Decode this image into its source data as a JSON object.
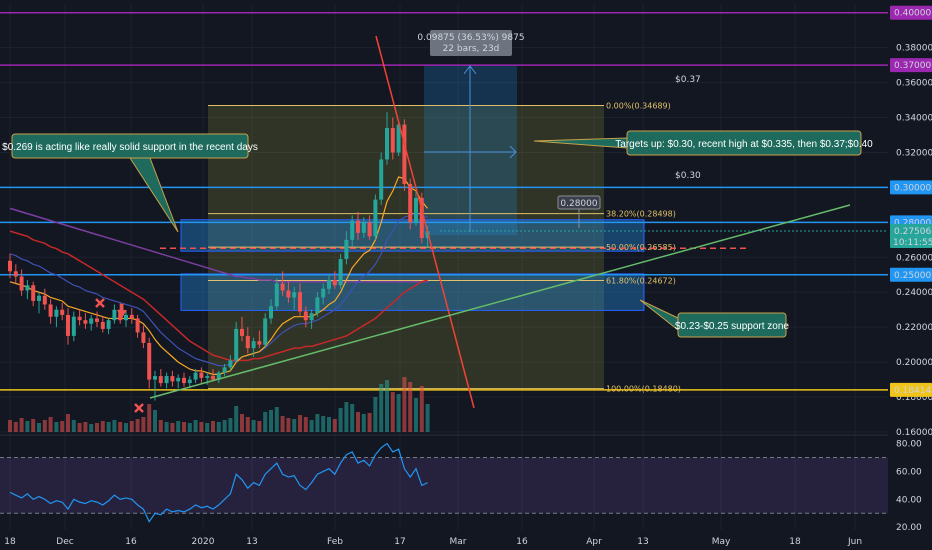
{
  "colors": {
    "background": "#131722",
    "grid": "#1e2230",
    "up": "#26a69a",
    "down": "#ef5350",
    "blue_line": "#2196f3",
    "purple_line": "#9c27b0",
    "yellow_line": "#f0c419",
    "fib_line": "#e0c068",
    "annotation_bg": "#1e6b5e",
    "annotation_border": "#c8a24a",
    "trend_red": "#f44336",
    "trend_green": "#66bb6a"
  },
  "chart_data": {
    "type": "candlestick",
    "ylim": [
      0.16,
      0.405
    ],
    "rsi_ylim": [
      18,
      84
    ],
    "y_ticks": [
      "0.38000",
      "0.36000",
      "0.34000",
      "0.32000",
      "0.30000",
      "0.28000",
      "0.26000",
      "0.24000",
      "0.22000",
      "0.20000",
      "0.18000",
      "0.16000"
    ],
    "x_ticks": [
      "18",
      "Dec",
      "16",
      "2020",
      "13",
      "Feb",
      "17",
      "Mar",
      "16",
      "Apr",
      "13",
      "May",
      "18",
      "Jun"
    ],
    "rsi_ticks": [
      "80.00",
      "60.00",
      "40.00",
      "20.00"
    ],
    "rsi_levels": [
      70,
      30
    ],
    "horizontal_levels": [
      {
        "value": 0.4,
        "label": "0.40000",
        "color": "purple"
      },
      {
        "value": 0.37,
        "label": "0.37000",
        "color": "purple"
      },
      {
        "value": 0.3,
        "label": "0.30000",
        "color": "blue"
      },
      {
        "value": 0.28,
        "label": "0.28000",
        "color": "blue"
      },
      {
        "value": 0.25,
        "label": "0.25000",
        "color": "blue"
      },
      {
        "value": 0.18414,
        "label": "0.18414",
        "color": "yellow"
      }
    ],
    "current_price": {
      "value": 0.27506,
      "label": "0.27506",
      "countdown": "10:11:55"
    },
    "fib_levels": [
      {
        "value": 0.34689,
        "label": "0.00%(0.34689)"
      },
      {
        "value": 0.28498,
        "label": "38.20%(0.28498)"
      },
      {
        "value": 0.26585,
        "label": "50.00%(0.26585)"
      },
      {
        "value": 0.24672,
        "label": "61.80%(0.24672)"
      },
      {
        "value": 0.1848,
        "label": "100.00%(0.18480)"
      }
    ],
    "annotations": [
      "$0.269 is acting like really solid support in the recent days",
      "Targets up: $0.30, recent high at $0.335, then $0.37;$0.40",
      "$0.23-$0.25 support zone"
    ],
    "price_labels": [
      "$0.37",
      "$0.30"
    ],
    "small_label": "0.28000",
    "measure_box": {
      "line1": "0.09875 (36.53%) 9875",
      "line2": "22 bars, 23d"
    },
    "candles": [
      [
        0.258,
        0.262,
        0.248,
        0.252
      ],
      [
        0.252,
        0.256,
        0.245,
        0.249
      ],
      [
        0.249,
        0.253,
        0.238,
        0.241
      ],
      [
        0.241,
        0.247,
        0.236,
        0.244
      ],
      [
        0.244,
        0.246,
        0.232,
        0.235
      ],
      [
        0.235,
        0.24,
        0.228,
        0.238
      ],
      [
        0.238,
        0.242,
        0.23,
        0.233
      ],
      [
        0.233,
        0.236,
        0.222,
        0.226
      ],
      [
        0.226,
        0.232,
        0.22,
        0.23
      ],
      [
        0.23,
        0.234,
        0.224,
        0.227
      ],
      [
        0.227,
        0.231,
        0.21,
        0.215
      ],
      [
        0.215,
        0.229,
        0.212,
        0.226
      ],
      [
        0.226,
        0.23,
        0.221,
        0.224
      ],
      [
        0.224,
        0.228,
        0.219,
        0.222
      ],
      [
        0.222,
        0.227,
        0.218,
        0.225
      ],
      [
        0.225,
        0.229,
        0.22,
        0.223
      ],
      [
        0.223,
        0.226,
        0.217,
        0.219
      ],
      [
        0.219,
        0.225,
        0.216,
        0.224
      ],
      [
        0.224,
        0.233,
        0.222,
        0.23
      ],
      [
        0.23,
        0.234,
        0.222,
        0.224
      ],
      [
        0.224,
        0.229,
        0.22,
        0.227
      ],
      [
        0.227,
        0.231,
        0.222,
        0.225
      ],
      [
        0.225,
        0.227,
        0.214,
        0.217
      ],
      [
        0.217,
        0.221,
        0.208,
        0.211
      ],
      [
        0.211,
        0.214,
        0.185,
        0.19
      ],
      [
        0.19,
        0.195,
        0.178,
        0.192
      ],
      [
        0.192,
        0.196,
        0.186,
        0.188
      ],
      [
        0.188,
        0.194,
        0.185,
        0.192
      ],
      [
        0.192,
        0.195,
        0.186,
        0.189
      ],
      [
        0.189,
        0.193,
        0.185,
        0.191
      ],
      [
        0.191,
        0.194,
        0.186,
        0.188
      ],
      [
        0.188,
        0.192,
        0.185,
        0.19
      ],
      [
        0.19,
        0.196,
        0.188,
        0.194
      ],
      [
        0.194,
        0.197,
        0.188,
        0.191
      ],
      [
        0.191,
        0.194,
        0.187,
        0.192
      ],
      [
        0.192,
        0.196,
        0.189,
        0.19
      ],
      [
        0.19,
        0.195,
        0.188,
        0.194
      ],
      [
        0.194,
        0.199,
        0.192,
        0.197
      ],
      [
        0.197,
        0.204,
        0.195,
        0.201
      ],
      [
        0.201,
        0.223,
        0.2,
        0.219
      ],
      [
        0.219,
        0.226,
        0.212,
        0.215
      ],
      [
        0.215,
        0.22,
        0.205,
        0.208
      ],
      [
        0.208,
        0.214,
        0.203,
        0.212
      ],
      [
        0.212,
        0.218,
        0.208,
        0.21
      ],
      [
        0.21,
        0.228,
        0.209,
        0.225
      ],
      [
        0.225,
        0.236,
        0.222,
        0.232
      ],
      [
        0.232,
        0.248,
        0.23,
        0.245
      ],
      [
        0.245,
        0.252,
        0.238,
        0.241
      ],
      [
        0.241,
        0.246,
        0.234,
        0.237
      ],
      [
        0.237,
        0.243,
        0.23,
        0.24
      ],
      [
        0.24,
        0.245,
        0.226,
        0.229
      ],
      [
        0.229,
        0.232,
        0.22,
        0.224
      ],
      [
        0.224,
        0.23,
        0.219,
        0.228
      ],
      [
        0.228,
        0.24,
        0.226,
        0.237
      ],
      [
        0.237,
        0.245,
        0.233,
        0.242
      ],
      [
        0.242,
        0.25,
        0.239,
        0.247
      ],
      [
        0.247,
        0.252,
        0.242,
        0.244
      ],
      [
        0.244,
        0.262,
        0.242,
        0.259
      ],
      [
        0.259,
        0.275,
        0.256,
        0.27
      ],
      [
        0.27,
        0.284,
        0.266,
        0.281
      ],
      [
        0.281,
        0.286,
        0.27,
        0.274
      ],
      [
        0.274,
        0.283,
        0.271,
        0.28
      ],
      [
        0.28,
        0.284,
        0.27,
        0.272
      ],
      [
        0.272,
        0.296,
        0.27,
        0.293
      ],
      [
        0.293,
        0.32,
        0.29,
        0.316
      ],
      [
        0.316,
        0.343,
        0.313,
        0.334
      ],
      [
        0.334,
        0.34,
        0.316,
        0.32
      ],
      [
        0.32,
        0.338,
        0.318,
        0.336
      ],
      [
        0.336,
        0.339,
        0.298,
        0.302
      ],
      [
        0.302,
        0.305,
        0.276,
        0.28
      ],
      [
        0.28,
        0.298,
        0.278,
        0.294
      ],
      [
        0.294,
        0.297,
        0.268,
        0.271
      ],
      [
        0.271,
        0.278,
        0.266,
        0.275
      ]
    ],
    "volumes": [
      0.012,
      0.01,
      0.014,
      0.011,
      0.013,
      0.009,
      0.012,
      0.015,
      0.01,
      0.011,
      0.018,
      0.012,
      0.009,
      0.01,
      0.008,
      0.009,
      0.011,
      0.01,
      0.012,
      0.01,
      0.009,
      0.011,
      0.013,
      0.015,
      0.028,
      0.022,
      0.012,
      0.01,
      0.009,
      0.011,
      0.01,
      0.009,
      0.012,
      0.01,
      0.009,
      0.011,
      0.01,
      0.012,
      0.014,
      0.026,
      0.018,
      0.015,
      0.012,
      0.011,
      0.02,
      0.022,
      0.025,
      0.016,
      0.014,
      0.013,
      0.017,
      0.015,
      0.012,
      0.018,
      0.016,
      0.015,
      0.013,
      0.024,
      0.03,
      0.028,
      0.02,
      0.018,
      0.019,
      0.035,
      0.048,
      0.052,
      0.04,
      0.038,
      0.055,
      0.05,
      0.034,
      0.046,
      0.028
    ],
    "rsi": [
      45,
      43,
      41,
      44,
      40,
      42,
      40,
      37,
      39,
      38,
      33,
      40,
      38,
      37,
      39,
      38,
      36,
      39,
      43,
      40,
      41,
      40,
      36,
      33,
      24,
      30,
      29,
      33,
      31,
      32,
      31,
      33,
      36,
      34,
      35,
      33,
      36,
      40,
      44,
      58,
      54,
      48,
      52,
      50,
      58,
      62,
      66,
      58,
      56,
      57,
      50,
      47,
      52,
      58,
      60,
      62,
      58,
      66,
      72,
      74,
      66,
      68,
      64,
      72,
      77,
      80,
      74,
      76,
      62,
      56,
      62,
      50,
      52
    ],
    "ema_orange": [
      0.246,
      0.245,
      0.244,
      0.243,
      0.241,
      0.24,
      0.239,
      0.237,
      0.236,
      0.235,
      0.232,
      0.231,
      0.23,
      0.229,
      0.228,
      0.227,
      0.226,
      0.225,
      0.225,
      0.225,
      0.225,
      0.225,
      0.224,
      0.222,
      0.218,
      0.213,
      0.209,
      0.206,
      0.203,
      0.2,
      0.198,
      0.196,
      0.195,
      0.195,
      0.194,
      0.193,
      0.193,
      0.194,
      0.195,
      0.2,
      0.203,
      0.204,
      0.205,
      0.206,
      0.209,
      0.213,
      0.218,
      0.222,
      0.224,
      0.226,
      0.226,
      0.226,
      0.226,
      0.228,
      0.23,
      0.233,
      0.235,
      0.24,
      0.247,
      0.254,
      0.258,
      0.262,
      0.264,
      0.27,
      0.28,
      0.292,
      0.298,
      0.306,
      0.305,
      0.3,
      0.298,
      0.292,
      0.288
    ],
    "ema_blue": [
      0.262,
      0.261,
      0.259,
      0.258,
      0.256,
      0.255,
      0.253,
      0.251,
      0.25,
      0.248,
      0.246,
      0.244,
      0.243,
      0.241,
      0.24,
      0.239,
      0.237,
      0.236,
      0.235,
      0.234,
      0.233,
      0.232,
      0.231,
      0.229,
      0.225,
      0.221,
      0.217,
      0.214,
      0.211,
      0.208,
      0.206,
      0.204,
      0.202,
      0.201,
      0.2,
      0.199,
      0.198,
      0.198,
      0.199,
      0.201,
      0.203,
      0.204,
      0.205,
      0.206,
      0.208,
      0.211,
      0.214,
      0.217,
      0.219,
      0.221,
      0.222,
      0.222,
      0.223,
      0.224,
      0.226,
      0.228,
      0.23,
      0.233,
      0.237,
      0.242,
      0.246,
      0.249,
      0.252,
      0.256,
      0.262,
      0.27,
      0.275,
      0.281,
      0.283,
      0.284,
      0.285,
      0.284,
      0.283
    ],
    "sma_red": [
      0.275,
      0.274,
      0.273,
      0.272,
      0.27,
      0.269,
      0.268,
      0.266,
      0.265,
      0.263,
      0.262,
      0.26,
      0.258,
      0.256,
      0.254,
      0.252,
      0.25,
      0.248,
      0.246,
      0.244,
      0.242,
      0.24,
      0.238,
      0.236,
      0.233,
      0.23,
      0.227,
      0.224,
      0.221,
      0.218,
      0.215,
      0.212,
      0.21,
      0.208,
      0.206,
      0.204,
      0.203,
      0.202,
      0.201,
      0.201,
      0.201,
      0.201,
      0.202,
      0.202,
      0.203,
      0.204,
      0.205,
      0.206,
      0.207,
      0.208,
      0.208,
      0.209,
      0.209,
      0.21,
      0.211,
      0.212,
      0.213,
      0.214,
      0.215,
      0.217,
      0.219,
      0.221,
      0.223,
      0.225,
      0.228,
      0.231,
      0.234,
      0.237,
      0.24,
      0.242,
      0.244,
      0.246,
      0.247
    ],
    "sma_purple": [
      0.288,
      0.287,
      0.286,
      0.285,
      0.284,
      0.283,
      0.282,
      0.281,
      0.28,
      0.279,
      0.278,
      0.277,
      0.276,
      0.275,
      0.274,
      0.273,
      0.272,
      0.271,
      0.27,
      0.269,
      0.268,
      0.267,
      0.266,
      0.265,
      0.264,
      0.263,
      0.262,
      0.261,
      0.26,
      0.259,
      0.258,
      0.257,
      0.256,
      0.255,
      0.254,
      0.253,
      0.252,
      0.251,
      0.25,
      0.249,
      0.249,
      0.248,
      0.248,
      0.247,
      0.247,
      0.247,
      0.246,
      0.246,
      0.246,
      0.246,
      0.246,
      0.246,
      0.246,
      0.246,
      0.246,
      0.246,
      0.246,
      0.246,
      0.246,
      0.246,
      0.246,
      0.246,
      0.246,
      0.246,
      0.246,
      0.246,
      0.246,
      0.246,
      0.246,
      0.246,
      0.246,
      0.246,
      0.246
    ]
  }
}
